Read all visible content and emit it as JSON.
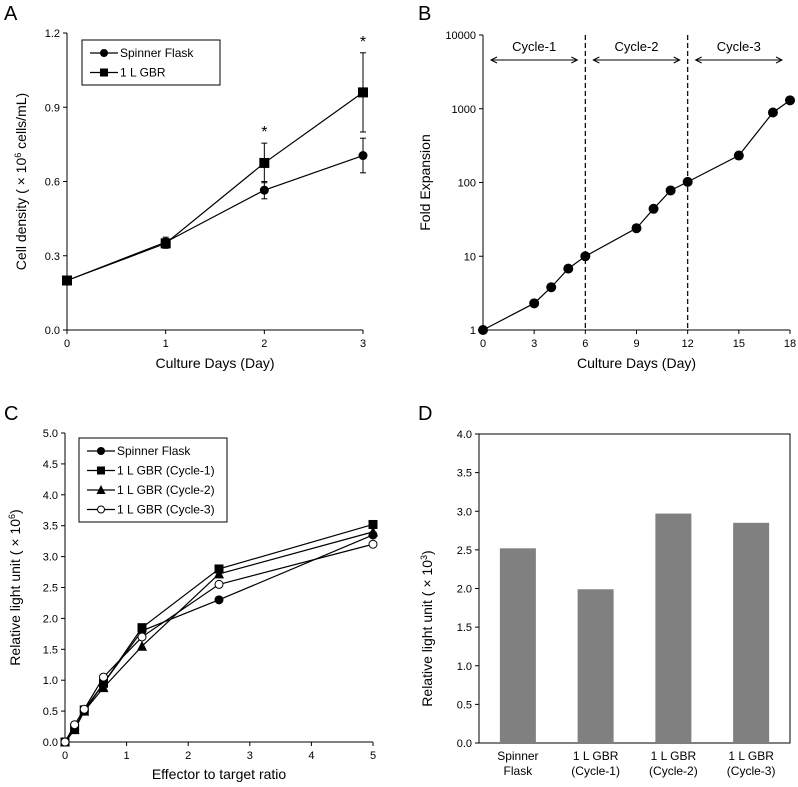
{
  "chart_data": [
    {
      "panel": "A",
      "type": "line",
      "x": [
        0,
        1,
        2,
        3
      ],
      "xlabel": "Culture Days (Day)",
      "ylabel_parts": [
        "Cell density (",
        "×",
        "10",
        "6",
        " cells/mL)"
      ],
      "xlim": [
        0,
        3
      ],
      "ylim": [
        0,
        1.2
      ],
      "xticks": [
        "0",
        "1",
        "2",
        "3"
      ],
      "yticks": [
        "0.0",
        "0.3",
        "0.6",
        "0.9",
        "1.2"
      ],
      "legend_position": "top-left",
      "series": [
        {
          "name": "Spinner Flask",
          "marker": "circle",
          "values": [
            0.2,
            0.355,
            0.565,
            0.705
          ],
          "err": [
            0,
            0.02,
            0.035,
            0.07
          ]
        },
        {
          "name": "1 L GBR",
          "marker": "square",
          "values": [
            0.2,
            0.35,
            0.675,
            0.96
          ],
          "err": [
            0,
            0.02,
            0.08,
            0.16
          ]
        }
      ],
      "annotations": [
        {
          "x": 2,
          "label": "*"
        },
        {
          "x": 3,
          "label": "*"
        }
      ]
    },
    {
      "panel": "B",
      "type": "line",
      "scale_y": "log",
      "xlabel": "Culture Days (Day)",
      "ylabel": "Fold Expansion",
      "xlim": [
        0,
        18
      ],
      "ylim": [
        1,
        10000
      ],
      "xticks": [
        "0",
        "3",
        "6",
        "9",
        "12",
        "15",
        "18"
      ],
      "yticks": [
        "1",
        "10",
        "100",
        "1000",
        "10000"
      ],
      "series": [
        {
          "name": "Fold Expansion",
          "marker": "circle",
          "x": [
            0,
            3,
            4,
            5,
            6,
            9,
            10,
            11,
            12,
            15,
            17,
            18
          ],
          "values": [
            1,
            2.3,
            3.8,
            6.8,
            10,
            24,
            44,
            78,
            102,
            232,
            890,
            1300
          ]
        }
      ],
      "cycle_dividers": [
        6,
        12
      ],
      "cycles": [
        {
          "label": "Cycle-1",
          "range": [
            0,
            6
          ]
        },
        {
          "label": "Cycle-2",
          "range": [
            6,
            12
          ]
        },
        {
          "label": "Cycle-3",
          "range": [
            12,
            18
          ]
        }
      ]
    },
    {
      "panel": "C",
      "type": "line",
      "xlabel": "Effector to target ratio",
      "ylabel_parts": [
        "Relative light unit (",
        "×",
        "10",
        "6",
        ")"
      ],
      "xlim": [
        0,
        5
      ],
      "ylim": [
        0,
        5
      ],
      "xticks": [
        "0",
        "1",
        "2",
        "3",
        "4",
        "5"
      ],
      "yticks": [
        "0.0",
        "0.5",
        "1.0",
        "1.5",
        "2.0",
        "2.5",
        "3.0",
        "3.5",
        "4.0",
        "4.5",
        "5.0"
      ],
      "legend_position": "top-left",
      "x": [
        0,
        0.156,
        0.3125,
        0.625,
        1.25,
        2.5,
        5
      ],
      "series": [
        {
          "name": "Spinner Flask",
          "marker": "circle",
          "values": [
            0,
            0.2,
            0.5,
            0.95,
            1.8,
            2.3,
            3.35
          ]
        },
        {
          "name": "1 L GBR (Cycle-1)",
          "marker": "square",
          "values": [
            0,
            0.22,
            0.52,
            0.95,
            1.85,
            2.8,
            3.52
          ]
        },
        {
          "name": "1 L GBR (Cycle-2)",
          "marker": "triangle",
          "values": [
            0,
            0.2,
            0.5,
            0.88,
            1.55,
            2.72,
            3.4
          ]
        },
        {
          "name": "1 L GBR (Cycle-3)",
          "marker": "open-circle",
          "values": [
            0,
            0.28,
            0.53,
            1.05,
            1.7,
            2.55,
            3.2
          ]
        }
      ]
    },
    {
      "panel": "D",
      "type": "bar",
      "ylabel_parts": [
        "Relative light unit (",
        "×",
        "10",
        "3",
        ")"
      ],
      "ylim": [
        0,
        4
      ],
      "yticks": [
        "0.0",
        "0.5",
        "1.0",
        "1.5",
        "2.0",
        "2.5",
        "3.0",
        "3.5",
        "4.0"
      ],
      "categories": [
        [
          "Spinner",
          "Flask"
        ],
        [
          "1 L GBR",
          "(Cycle-1)"
        ],
        [
          "1 L GBR",
          "(Cycle-2)"
        ],
        [
          "1 L GBR",
          "(Cycle-3)"
        ]
      ],
      "values": [
        2.52,
        1.99,
        2.97,
        2.85
      ],
      "bar_color": "#808080"
    }
  ]
}
